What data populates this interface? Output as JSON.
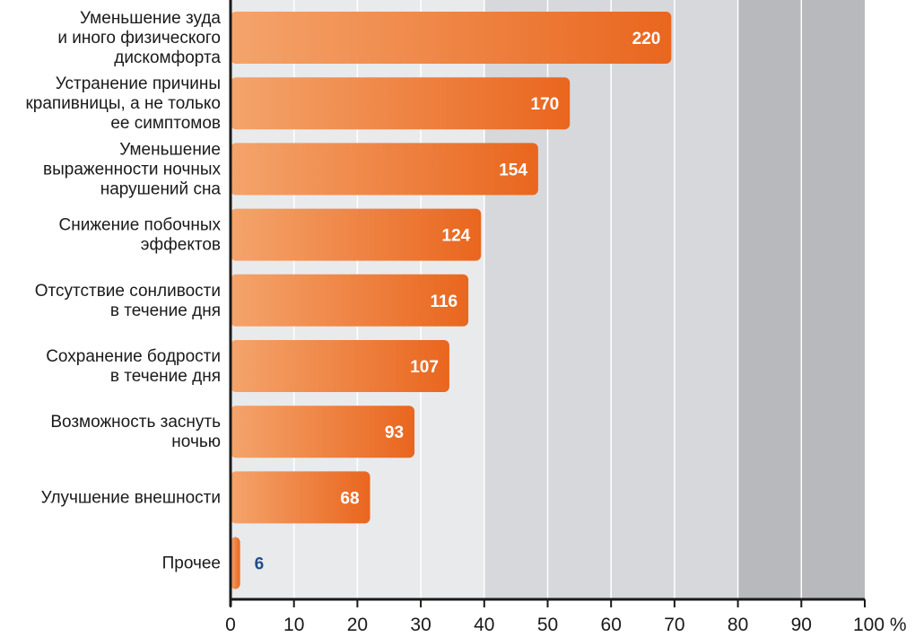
{
  "chart_data": {
    "type": "bar",
    "orientation": "horizontal",
    "categories": [
      "Уменьшение зуда\nи иного физического\nдискомфорта",
      "Устранение причины\nкрапивницы, а не только\nее симптомов",
      "Уменьшение\nвыраженности ночных\nнарушений сна",
      "Снижение побочных\nэффектов",
      "Отсутствие сонливости\nв течение дня",
      "Сохранение бодрости\nв течение дня",
      "Возможность заснуть\nночью",
      "Улучшение внешности",
      "Прочее"
    ],
    "values": [
      69.5,
      53.5,
      48.5,
      39.5,
      37.5,
      34.5,
      29,
      22,
      1.5
    ],
    "data_labels": [
      "220",
      "170",
      "154",
      "124",
      "116",
      "107",
      "93",
      "68",
      "6"
    ],
    "xlim": [
      0,
      100
    ],
    "x_ticks": [
      "0",
      "10",
      "20",
      "30",
      "40",
      "50",
      "60",
      "70",
      "80",
      "90",
      "100 %"
    ],
    "grid": true,
    "background_bands": [
      {
        "from": 0,
        "to": 40,
        "color": "#e9eaec"
      },
      {
        "from": 40,
        "to": 80,
        "color": "#d7d8db"
      },
      {
        "from": 80,
        "to": 100,
        "color": "#b8b9bd"
      }
    ],
    "colors": {
      "bar_light": "#f4a46c",
      "bar_dark": "#e9661e",
      "value_text": "#ffffff",
      "outside_value_text": "#1f4d8c",
      "axis": "#1a1a1a",
      "grid": "#ffffff"
    }
  }
}
